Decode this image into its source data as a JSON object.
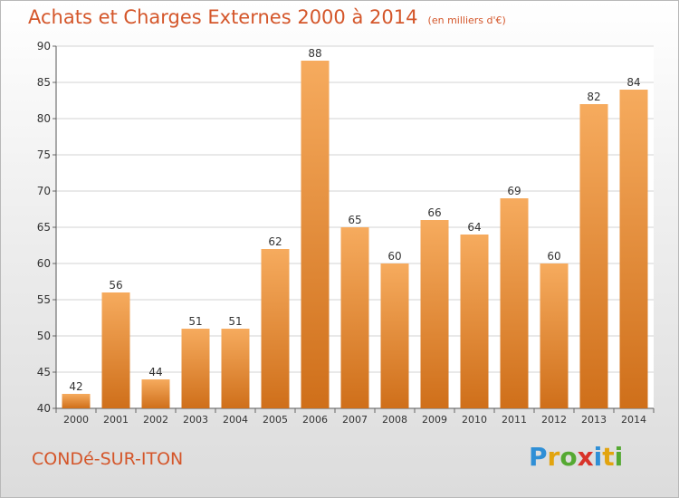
{
  "title": "Achats et Charges Externes 2000 à 2014",
  "unit_note": "(en milliers d'€)",
  "location": "CONDé-SUR-ITON",
  "brand": {
    "name": "Proxiti",
    "letters": [
      {
        "char": "P",
        "color": "#2f8fd6"
      },
      {
        "char": "r",
        "color": "#e2a40f"
      },
      {
        "char": "o",
        "color": "#55a932"
      },
      {
        "char": "x",
        "color": "#d8332a"
      },
      {
        "char": "i",
        "color": "#2f8fd6"
      },
      {
        "char": "t",
        "color": "#e2a40f"
      },
      {
        "char": "i",
        "color": "#55a932"
      }
    ]
  },
  "colors": {
    "title": "#d4562a",
    "bar_top": "#f6ab5e",
    "bar_bottom": "#cf6f1a",
    "grid": "#d3d3d3",
    "axis_text": "#333333"
  },
  "chart_data": {
    "type": "bar",
    "categories": [
      "2000",
      "2001",
      "2002",
      "2003",
      "2004",
      "2005",
      "2006",
      "2007",
      "2008",
      "2009",
      "2010",
      "2011",
      "2012",
      "2013",
      "2014"
    ],
    "values": [
      42,
      56,
      44,
      51,
      51,
      62,
      88,
      65,
      60,
      66,
      64,
      69,
      60,
      82,
      84
    ],
    "ylim": [
      40,
      90
    ],
    "yticks": [
      40,
      45,
      50,
      55,
      60,
      65,
      70,
      75,
      80,
      85,
      90
    ],
    "grid": true,
    "data_labels": true
  }
}
